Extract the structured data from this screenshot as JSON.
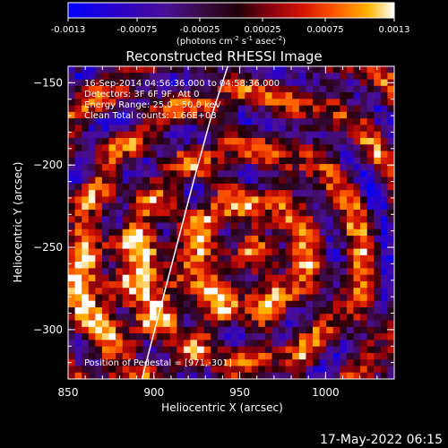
{
  "colorbar": {
    "min": -0.0013,
    "max": 0.0013,
    "tick_labels": [
      "-0.0013",
      "-0.00075",
      "-0.00025",
      "0.00025",
      "0.00075",
      "0.0013"
    ],
    "tick_values": [
      -0.0013,
      -0.00075,
      -0.00025,
      0.00025,
      0.00075,
      0.0013
    ],
    "units_prefix": "(photons cm",
    "units_exp1": "-2",
    "units_mid1": " s",
    "units_exp2": "-1",
    "units_mid2": " asec",
    "units_exp3": "-2",
    "units_suffix": ")"
  },
  "chart_data": {
    "type": "heatmap",
    "title": "Reconstructed RHESSI Image",
    "xlabel": "Heliocentric X (arcsec)",
    "ylabel": "Heliocentric Y (arcsec)",
    "xlim": [
      850,
      1040
    ],
    "ylim": [
      -330,
      -140
    ],
    "x_ticks": [
      850,
      900,
      950,
      1000
    ],
    "y_ticks": [
      -150,
      -200,
      -250,
      -300
    ],
    "annotations": [
      "16-Sep-2014 04:56:36.000 to 04:58:36.000",
      "Detectors: 3F 6F 9F, Att 0",
      "Energy Range: 25.0 - 50.0 keV",
      "Clean    Total counts: 1.66E+03"
    ],
    "pedestal_note": "Position of Pedestal = [971,-301]",
    "limb_curve": {
      "x": [
        893,
        903,
        913,
        923,
        933,
        943
      ],
      "y": [
        -330,
        -290,
        -250,
        -210,
        -172,
        -140
      ]
    },
    "colorscale": {
      "stops": [
        0,
        0.15,
        0.3,
        0.42,
        0.52,
        0.62,
        0.72,
        0.82,
        0.92,
        1.0
      ],
      "colors": [
        "#0000ff",
        "#2a00c8",
        "#4b0f96",
        "#3a0a40",
        "#200008",
        "#8a0010",
        "#d41400",
        "#ff5a00",
        "#ffb400",
        "#ffffff"
      ]
    }
  },
  "footer": {
    "timestamp": "17-May-2022 06:15"
  }
}
